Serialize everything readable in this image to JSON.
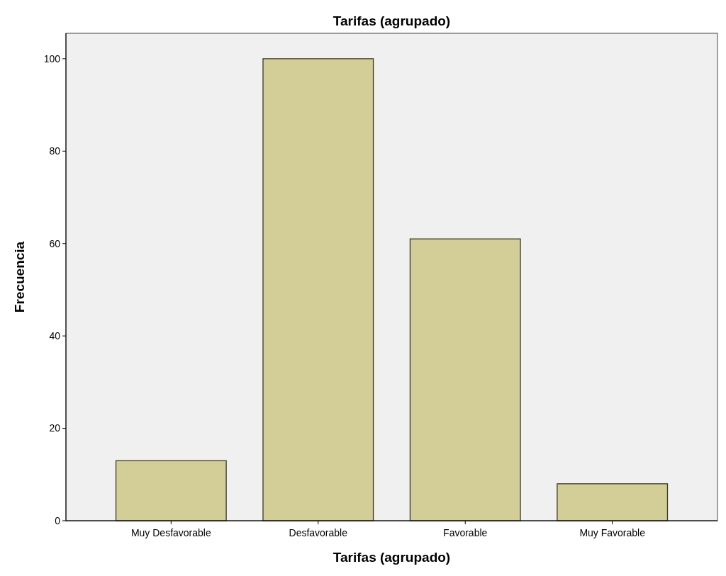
{
  "chart_data": {
    "type": "bar",
    "title": "Tarifas (agrupado)",
    "xlabel": "Tarifas (agrupado)",
    "ylabel": "Frecuencia",
    "categories": [
      "Muy Desfavorable",
      "Desfavorable",
      "Favorable",
      "Muy Favorable"
    ],
    "values": [
      13,
      100,
      61,
      8
    ],
    "color": "#d3ce97",
    "ylim": [
      0,
      105.5
    ],
    "yticks": [
      0,
      20,
      40,
      60,
      80,
      100
    ],
    "grid": false
  }
}
